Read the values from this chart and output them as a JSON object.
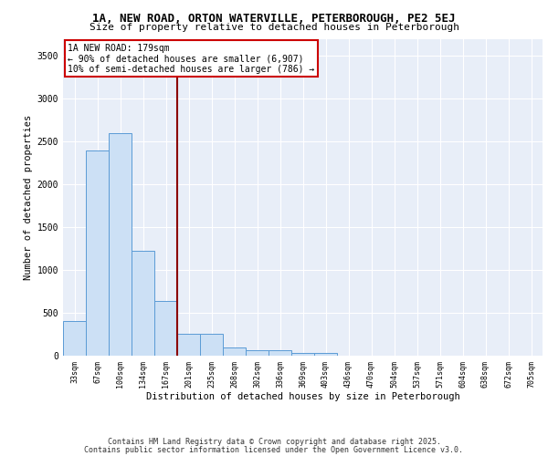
{
  "title_line1": "1A, NEW ROAD, ORTON WATERVILLE, PETERBOROUGH, PE2 5EJ",
  "title_line2": "Size of property relative to detached houses in Peterborough",
  "xlabel": "Distribution of detached houses by size in Peterborough",
  "ylabel": "Number of detached properties",
  "categories": [
    "33sqm",
    "67sqm",
    "100sqm",
    "134sqm",
    "167sqm",
    "201sqm",
    "235sqm",
    "268sqm",
    "302sqm",
    "336sqm",
    "369sqm",
    "403sqm",
    "436sqm",
    "470sqm",
    "504sqm",
    "537sqm",
    "571sqm",
    "604sqm",
    "638sqm",
    "672sqm",
    "705sqm"
  ],
  "values": [
    400,
    2400,
    2600,
    1220,
    640,
    260,
    260,
    100,
    60,
    60,
    30,
    30,
    0,
    0,
    0,
    0,
    0,
    0,
    0,
    0,
    0
  ],
  "bar_color": "#cce0f5",
  "bar_edge_color": "#5b9bd5",
  "background_color": "#e8eef8",
  "grid_color": "#ffffff",
  "vline_x": 4.5,
  "vline_color": "#8b0000",
  "annotation_text": "1A NEW ROAD: 179sqm\n← 90% of detached houses are smaller (6,907)\n10% of semi-detached houses are larger (786) →",
  "annotation_box_color": "#ffffff",
  "annotation_edge_color": "#cc0000",
  "ylim": [
    0,
    3700
  ],
  "yticks": [
    0,
    500,
    1000,
    1500,
    2000,
    2500,
    3000,
    3500
  ],
  "footer_line1": "Contains HM Land Registry data © Crown copyright and database right 2025.",
  "footer_line2": "Contains public sector information licensed under the Open Government Licence v3.0."
}
